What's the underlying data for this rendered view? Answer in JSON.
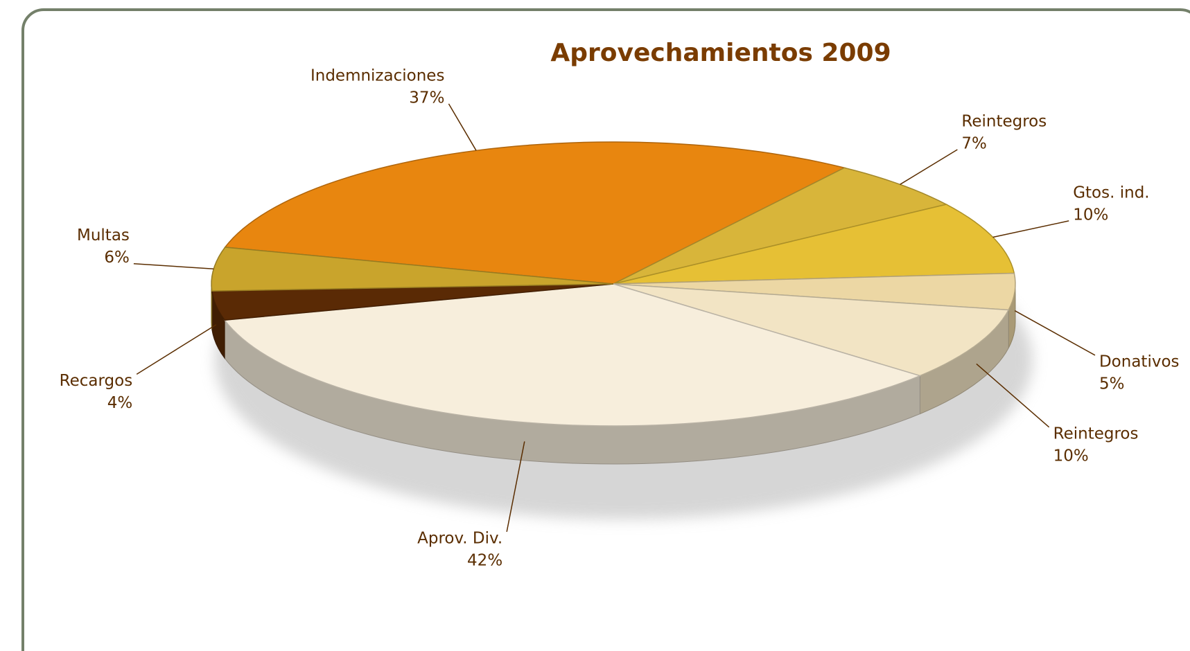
{
  "chart_data": {
    "type": "pie3d",
    "title": "Aprovechamientos 2009",
    "categories": [
      "Indemnizaciones",
      "Reintegros",
      "Gtos. ind.",
      "Donativos",
      "Reintegros",
      "Aprov. Div.",
      "Recargos",
      "Multas"
    ],
    "values": [
      37,
      7,
      10,
      5,
      10,
      42,
      4,
      6
    ],
    "value_labels": [
      "37%",
      "7%",
      "10%",
      "5%",
      "10%",
      "42%",
      "4%",
      "6%"
    ],
    "colors": [
      "#e8860f",
      "#d8b53a",
      "#e6c035",
      "#ecd7a4",
      "#f2e4c4",
      "#f7eedc",
      "#5a2a05",
      "#c9a42c"
    ]
  }
}
